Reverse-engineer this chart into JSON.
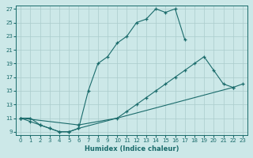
{
  "xlabel": "Humidex (Indice chaleur)",
  "bg_color": "#cce8e8",
  "grid_color": "#aacccc",
  "line_color": "#1a6b6b",
  "xlim": [
    -0.5,
    23.5
  ],
  "ylim": [
    8.5,
    27.5
  ],
  "xticks": [
    0,
    1,
    2,
    3,
    4,
    5,
    6,
    7,
    8,
    9,
    10,
    11,
    12,
    13,
    14,
    15,
    16,
    17,
    18,
    19,
    20,
    21,
    22,
    23
  ],
  "yticks": [
    9,
    11,
    13,
    15,
    17,
    19,
    21,
    23,
    25,
    27
  ],
  "upper_x": [
    0,
    1,
    2,
    3,
    4,
    5,
    6,
    7,
    8,
    9,
    10,
    11,
    12,
    13,
    14,
    15,
    16,
    17
  ],
  "upper_y": [
    11,
    11,
    10,
    9.5,
    9,
    9,
    9.5,
    15,
    19,
    20,
    22,
    23,
    25,
    25.5,
    27,
    26.5,
    27,
    22.5
  ],
  "mid_x": [
    0,
    6,
    10,
    11,
    12,
    13,
    14,
    15,
    16,
    17,
    18,
    19,
    20,
    21,
    22
  ],
  "mid_y": [
    11,
    10,
    11,
    12,
    13,
    14,
    15,
    16,
    17,
    18,
    19,
    20,
    18,
    16,
    15.5
  ],
  "bot_x": [
    0,
    1,
    2,
    3,
    4,
    5,
    6,
    22,
    23
  ],
  "bot_y": [
    11,
    10.5,
    10,
    9.5,
    9,
    9,
    9.5,
    15.5,
    16
  ]
}
